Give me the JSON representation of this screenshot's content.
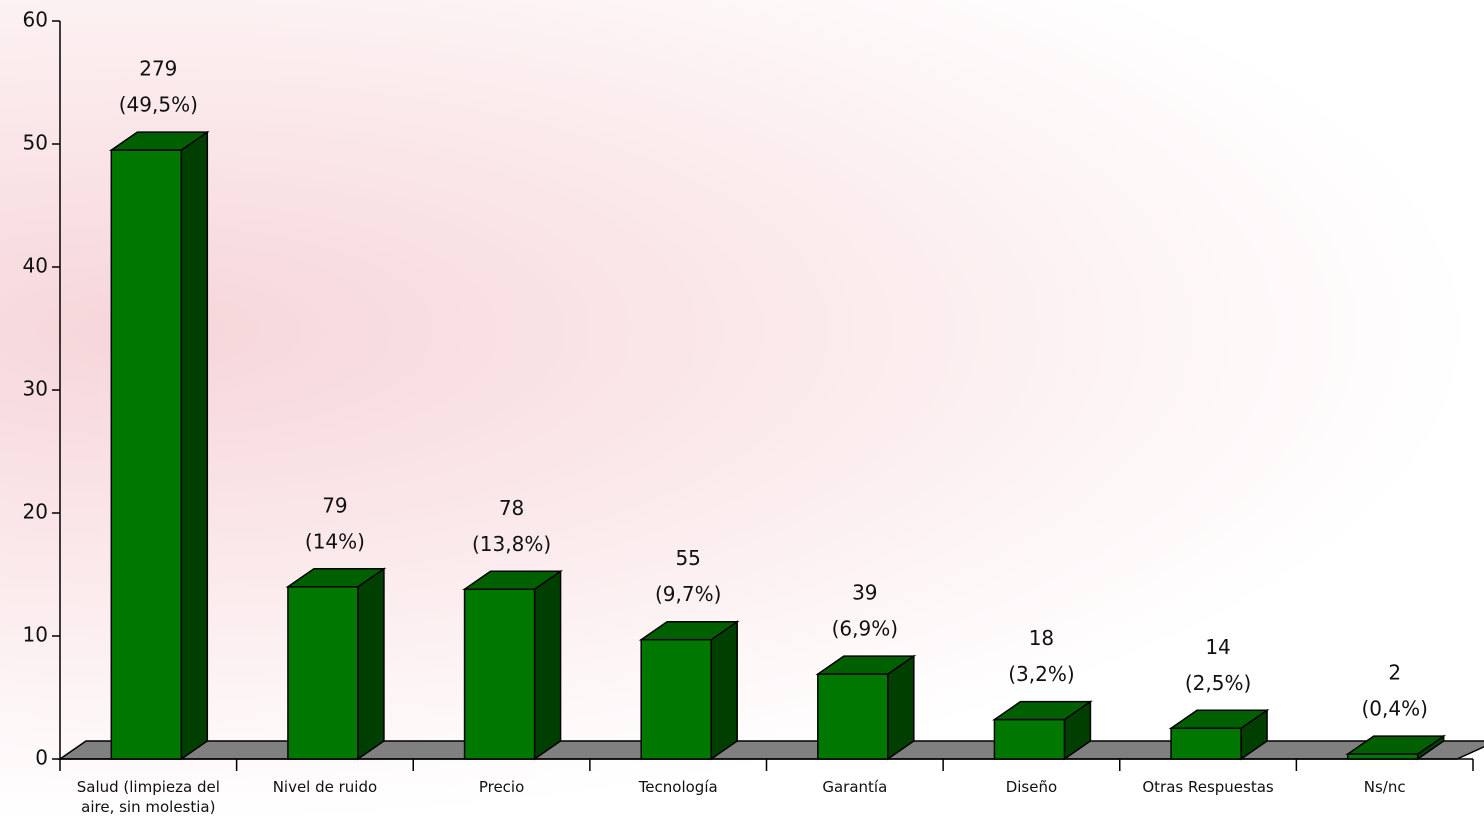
{
  "chart_data": {
    "type": "bar3d",
    "categories": [
      "Salud (limpieza del aire, sin molestia)",
      "Nivel de ruido",
      "Precio",
      "Tecnología",
      "Garantía",
      "Diseño",
      "Otras Respuestas",
      "Ns/nc"
    ],
    "values": [
      49.5,
      14,
      13.8,
      9.7,
      6.9,
      3.2,
      2.5,
      0.4
    ],
    "value_labels": [
      "(49,5%)",
      "(14%)",
      "(13,8%)",
      "(9,7%)",
      "(6,9%)",
      "(3,2%)",
      "(2,5%)",
      "(0,4%)"
    ],
    "counts": [
      279,
      79,
      78,
      55,
      39,
      18,
      14,
      2
    ],
    "color": "#007800",
    "ylim": [
      0,
      60
    ],
    "yticks": [
      0,
      10,
      20,
      30,
      40,
      50,
      60
    ]
  }
}
